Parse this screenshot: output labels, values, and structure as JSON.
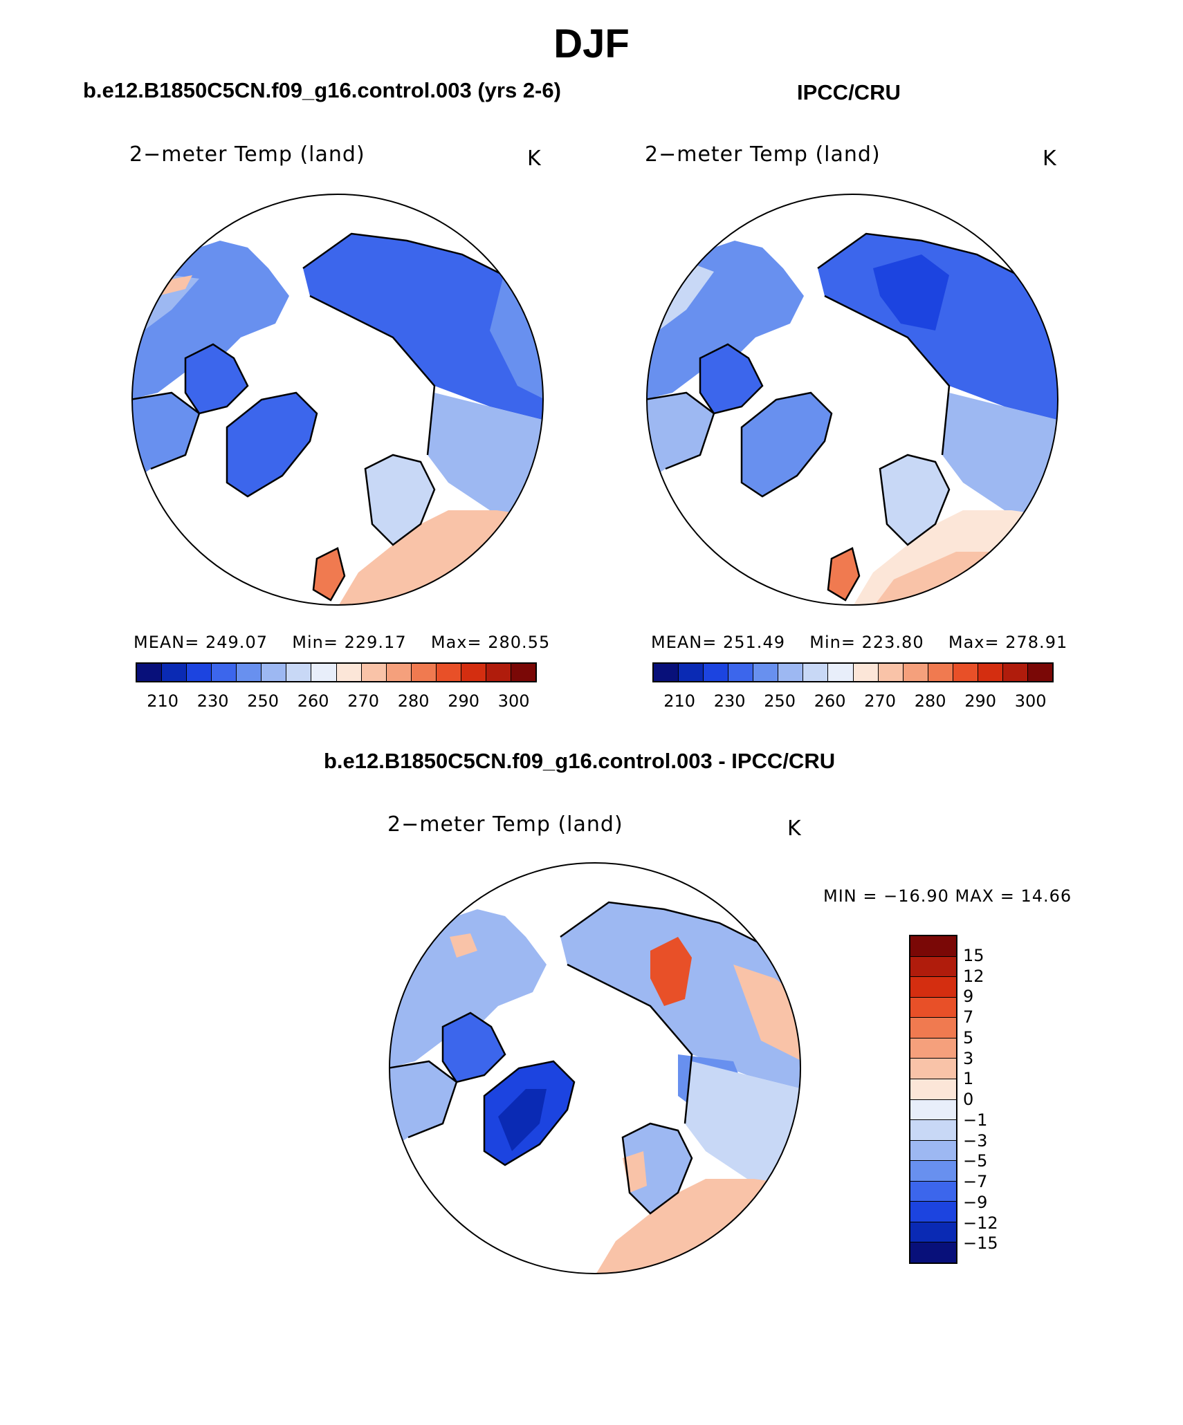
{
  "title": "DJF",
  "panels": {
    "model": {
      "heading": "b.e12.B1850C5CN.f09_g16.control.003 (yrs 2-6)",
      "plot_label": "2−meter Temp (land)",
      "units": "K",
      "stats": {
        "mean_label": "MEAN=",
        "mean": "249.07",
        "min_label": "Min=",
        "min": "229.17",
        "max_label": "Max=",
        "max": "280.55"
      },
      "colorbar_ticks": [
        "210",
        "230",
        "250",
        "260",
        "270",
        "280",
        "290",
        "300"
      ]
    },
    "obs": {
      "heading": "IPCC/CRU",
      "plot_label": "2−meter Temp (land)",
      "units": "K",
      "stats": {
        "mean_label": "MEAN=",
        "mean": "251.49",
        "min_label": "Min=",
        "min": "223.80",
        "max_label": "Max=",
        "max": "278.91"
      },
      "colorbar_ticks": [
        "210",
        "230",
        "250",
        "260",
        "270",
        "280",
        "290",
        "300"
      ]
    },
    "diff": {
      "heading": "b.e12.B1850C5CN.f09_g16.control.003 - IPCC/CRU",
      "plot_label": "2−meter Temp (land)",
      "units": "K",
      "minmax_text": "MIN = −16.90 MAX =   14.66",
      "colorbar_ticks": [
        "15",
        "12",
        "9",
        "7",
        "5",
        "3",
        "1",
        "0",
        "−1",
        "−3",
        "−5",
        "−7",
        "−9",
        "−12",
        "−15"
      ]
    }
  },
  "colors": {
    "abs_scale": [
      "#08107a",
      "#0a2ab4",
      "#1c44e0",
      "#3c66ec",
      "#6890ef",
      "#9db8f2",
      "#c8d8f6",
      "#e8eefa",
      "#fce6d8",
      "#f9c3a8",
      "#f5a07c",
      "#f07a50",
      "#e85028",
      "#d42e10",
      "#b01c0c",
      "#7a0806"
    ],
    "diff_scale": [
      "#7a0806",
      "#b01c0c",
      "#d42e10",
      "#e85028",
      "#f07a50",
      "#f5a07c",
      "#f9c3a8",
      "#fce6d8",
      "#e8eefa",
      "#c8d8f6",
      "#9db8f2",
      "#6890ef",
      "#3c66ec",
      "#1c44e0",
      "#0a2ab4",
      "#08107a"
    ],
    "ocean": "#ffffff",
    "coast": "#000000"
  }
}
